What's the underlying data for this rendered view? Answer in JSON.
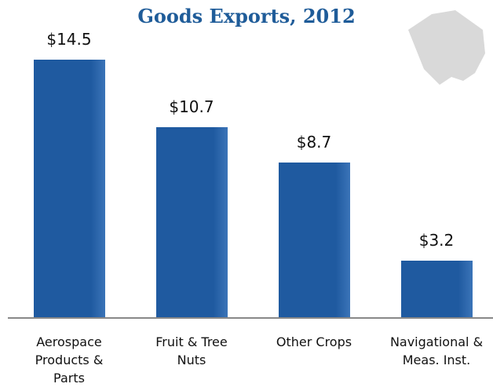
{
  "chart_data": {
    "type": "bar",
    "title": "Goods Exports, 2012",
    "categories": [
      "Aerospace Products & Parts",
      "Fruit & Tree Nuts",
      "Other Crops",
      "Navigational & Meas. Inst."
    ],
    "values": [
      14.5,
      10.7,
      8.7,
      3.2
    ],
    "value_labels": [
      "$14.5",
      "$10.7",
      "$8.7",
      "$3.2"
    ],
    "color": "#1f5aa0"
  }
}
